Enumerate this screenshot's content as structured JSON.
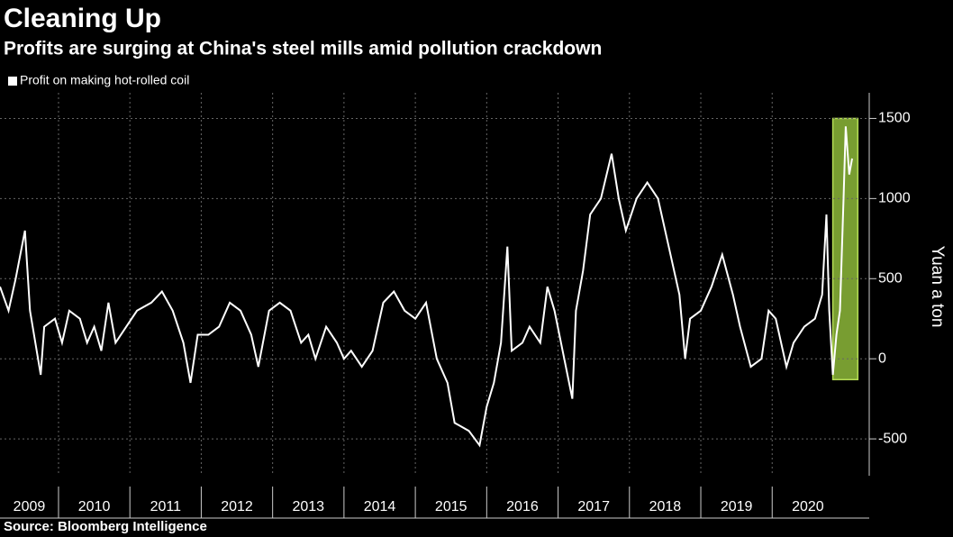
{
  "chart_data": {
    "type": "line",
    "title": "Cleaning Up",
    "subtitle": "Profits are surging at China's steel mills amid pollution crackdown",
    "source": "Source: Bloomberg Intelligence",
    "y_label": "Yuan a ton",
    "series": [
      {
        "name": "Profit on making hot-rolled coil",
        "color": "#ffffff",
        "x": [
          2009.18,
          2009.3,
          2009.4,
          2009.53,
          2009.6,
          2009.75,
          2009.8,
          2009.95,
          2010.05,
          2010.15,
          2010.3,
          2010.4,
          2010.5,
          2010.6,
          2010.7,
          2010.8,
          2010.95,
          2011.1,
          2011.3,
          2011.45,
          2011.6,
          2011.75,
          2011.85,
          2011.95,
          2012.1,
          2012.25,
          2012.4,
          2012.55,
          2012.7,
          2012.8,
          2012.95,
          2013.1,
          2013.25,
          2013.4,
          2013.5,
          2013.6,
          2013.75,
          2013.9,
          2014.0,
          2014.1,
          2014.25,
          2014.4,
          2014.55,
          2014.7,
          2014.85,
          2015.0,
          2015.15,
          2015.3,
          2015.45,
          2015.55,
          2015.75,
          2015.9,
          2016.0,
          2016.1,
          2016.2,
          2016.29,
          2016.35,
          2016.5,
          2016.6,
          2016.75,
          2016.85,
          2016.95,
          2017.2,
          2017.25,
          2017.35,
          2017.45,
          2017.6,
          2017.75,
          2017.85,
          2017.95,
          2018.1,
          2018.25,
          2018.4,
          2018.55,
          2018.7,
          2018.78,
          2018.85,
          2019.0,
          2019.15,
          2019.3,
          2019.45,
          2019.55,
          2019.7,
          2019.85,
          2019.95,
          2020.05,
          2020.2,
          2020.3,
          2020.45,
          2020.6,
          2020.7,
          2020.76,
          2020.8,
          2020.85,
          2020.9,
          2020.95,
          2021.0,
          2021.03,
          2021.08,
          2021.12
        ],
        "values": [
          450,
          300,
          500,
          800,
          300,
          -100,
          200,
          250,
          100,
          300,
          250,
          100,
          200,
          50,
          350,
          100,
          200,
          300,
          350,
          420,
          300,
          100,
          -150,
          150,
          150,
          200,
          350,
          300,
          150,
          -50,
          300,
          350,
          300,
          100,
          150,
          0,
          200,
          100,
          0,
          50,
          -50,
          50,
          350,
          420,
          300,
          250,
          350,
          0,
          -150,
          -400,
          -450,
          -540,
          -300,
          -150,
          100,
          700,
          50,
          100,
          200,
          100,
          450,
          300,
          -250,
          300,
          550,
          900,
          1000,
          1280,
          1000,
          800,
          1000,
          1100,
          1000,
          700,
          400,
          0,
          250,
          300,
          450,
          650,
          400,
          200,
          -50,
          0,
          300,
          250,
          -50,
          100,
          200,
          250,
          400,
          900,
          300,
          -100,
          150,
          300,
          1000,
          1450,
          1150,
          1250
        ]
      }
    ],
    "highlight": {
      "x": [
        2020.85,
        2021.2
      ],
      "y": [
        -130,
        1500
      ],
      "color": "#8db83a"
    },
    "xlim": [
      2009.18,
      2021.36
    ],
    "xticks": [
      2009,
      2010,
      2011,
      2012,
      2013,
      2014,
      2015,
      2016,
      2017,
      2018,
      2019,
      2020
    ],
    "ylim": [
      -730,
      1660
    ],
    "yticks": [
      -500,
      0,
      500,
      1000,
      1500
    ],
    "grid": true
  }
}
